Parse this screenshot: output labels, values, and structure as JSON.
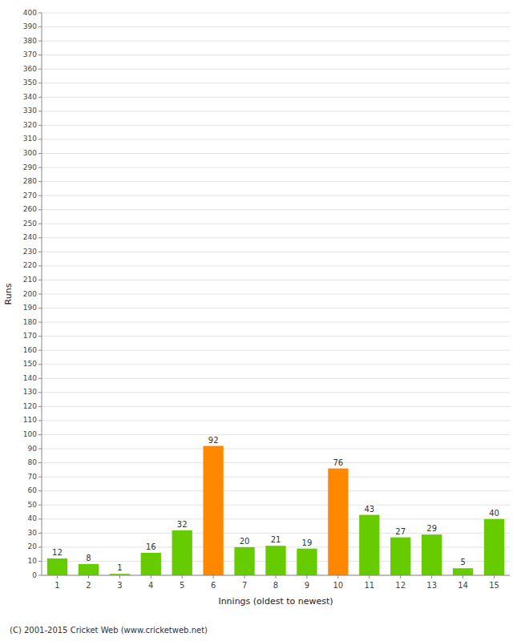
{
  "chart_data": {
    "type": "bar",
    "xlabel": "Innings (oldest to newest)",
    "ylabel": "Runs",
    "annotations": [
      "(C) 2001-2015 Cricket Web (www.cricketweb.net)"
    ],
    "categories": [
      "1",
      "2",
      "3",
      "4",
      "5",
      "6",
      "7",
      "8",
      "9",
      "10",
      "11",
      "12",
      "13",
      "14",
      "15"
    ],
    "values": [
      12,
      8,
      1,
      16,
      32,
      92,
      20,
      21,
      19,
      76,
      43,
      27,
      29,
      5,
      40
    ],
    "colors": [
      "#66cc00",
      "#66cc00",
      "#66cc00",
      "#66cc00",
      "#66cc00",
      "#ff8800",
      "#66cc00",
      "#66cc00",
      "#66cc00",
      "#ff8800",
      "#66cc00",
      "#66cc00",
      "#66cc00",
      "#66cc00",
      "#66cc00"
    ],
    "ylim": [
      0,
      400
    ],
    "yticks": [
      0,
      10,
      20,
      30,
      40,
      50,
      60,
      70,
      80,
      90,
      100,
      110,
      120,
      130,
      140,
      150,
      160,
      170,
      180,
      190,
      200,
      210,
      220,
      230,
      240,
      250,
      260,
      270,
      280,
      290,
      300,
      310,
      320,
      330,
      340,
      350,
      360,
      370,
      380,
      390,
      400
    ],
    "grid": true,
    "data_labels": true
  }
}
